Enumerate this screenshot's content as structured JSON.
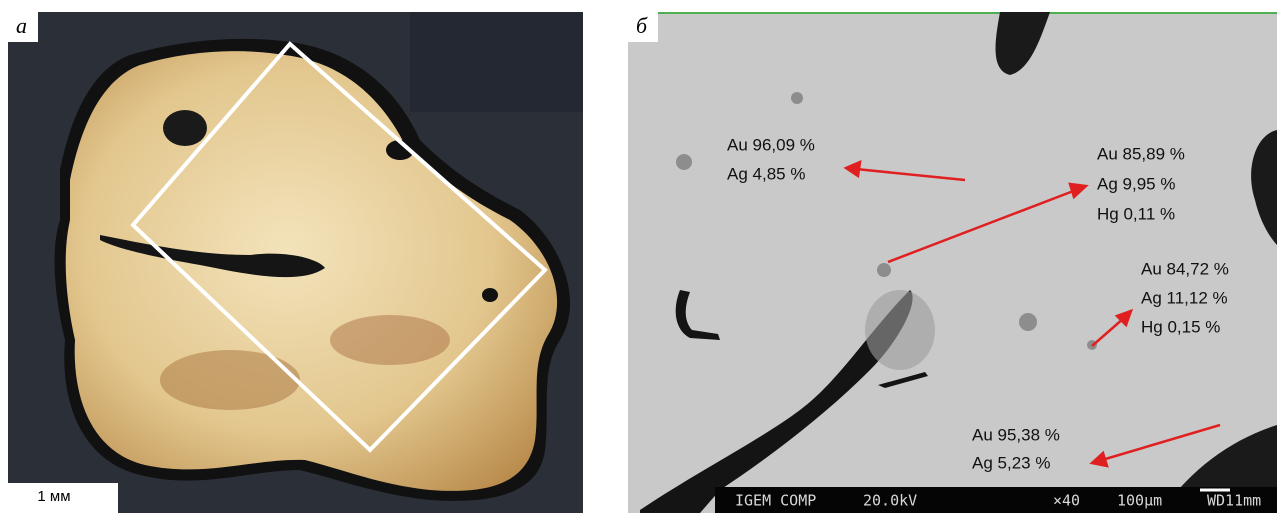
{
  "panel_a": {
    "label": "а",
    "scale_bar": "1 мм"
  },
  "panel_b": {
    "label": "б",
    "annotations": [
      {
        "lines": [
          "Au 96,09 %",
          "Ag 4,85 %"
        ]
      },
      {
        "lines": [
          "Au 85,89 %",
          "Ag 9,95 %",
          "Hg 0,11 %"
        ]
      },
      {
        "lines": [
          "Au 84,72 %",
          "Ag 11,12 %",
          "Hg 0,15 %"
        ]
      },
      {
        "lines": [
          "Au 95,38 %",
          "Ag 5,23 %"
        ]
      }
    ],
    "info_bar": [
      "IGEM COMP",
      "20.0kV",
      "×40",
      "100μm",
      "WD11mm"
    ]
  }
}
